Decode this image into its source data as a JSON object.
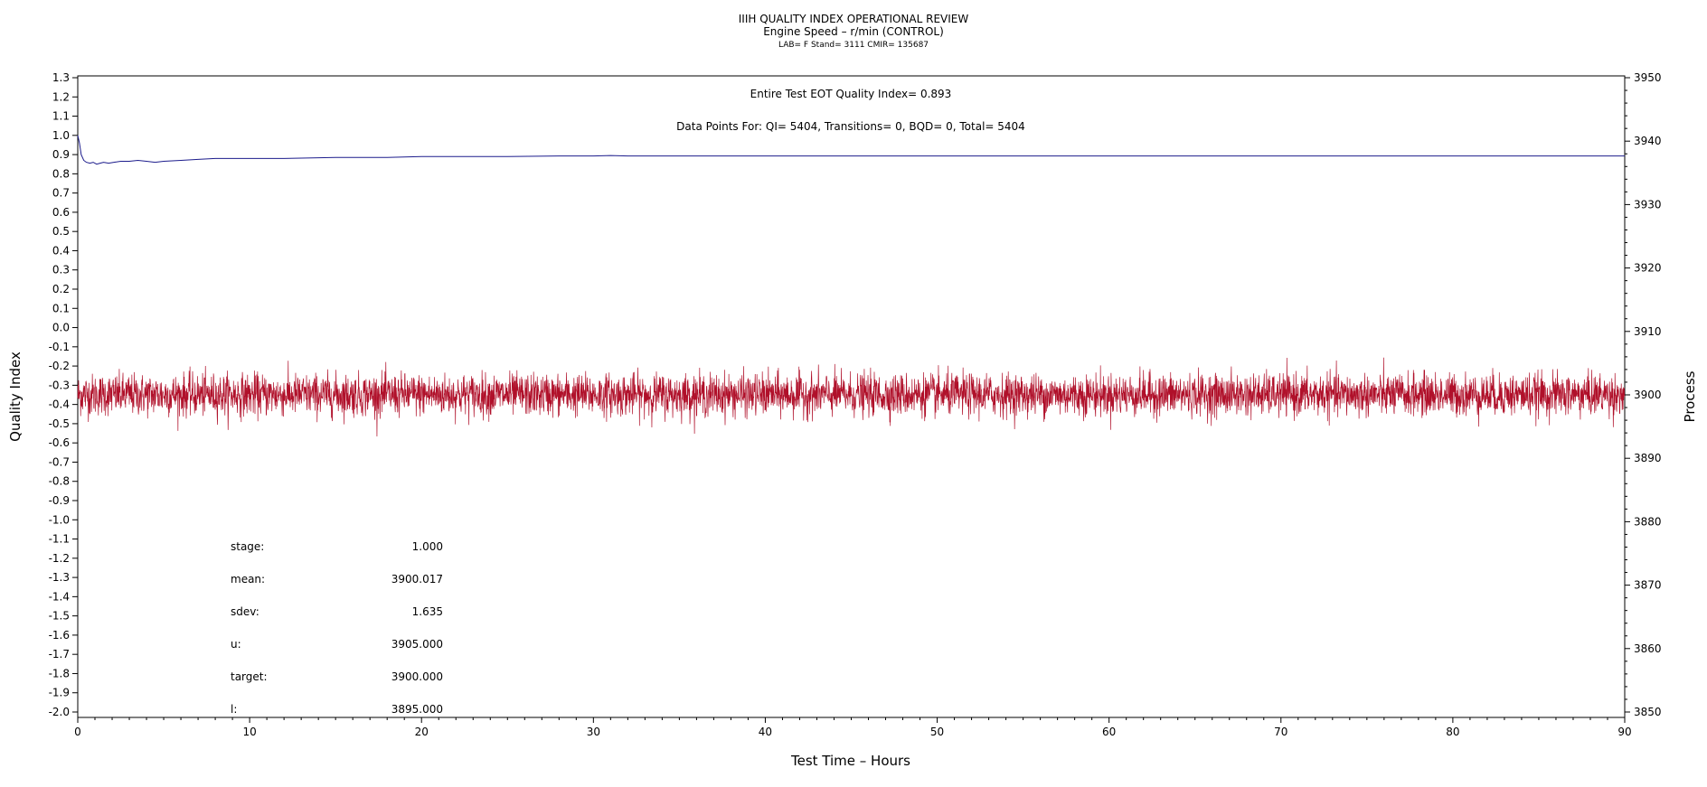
{
  "chart_data": {
    "type": "line",
    "title": "IIIH QUALITY INDEX OPERATIONAL REVIEW",
    "subtitle": "Engine Speed – r/min (CONTROL)",
    "subtitle2": "LAB= F Stand= 3111 CMIR= 135687",
    "xlabel": "Test Time – Hours",
    "ylabel": "Quality Index",
    "y2label": "Process",
    "xlim": [
      0,
      90
    ],
    "ylim": [
      -2.0,
      1.3
    ],
    "y2lim": [
      3850,
      3950
    ],
    "x_ticks": [
      "0",
      "10",
      "20",
      "30",
      "40",
      "50",
      "60",
      "70",
      "80",
      "90"
    ],
    "y_ticks": [
      "1.3",
      "1.2",
      "1.1",
      "1.0",
      "0.9",
      "0.8",
      "0.7",
      "0.6",
      "0.5",
      "0.4",
      "0.3",
      "0.2",
      "0.1",
      "0.0",
      "-0.1",
      "-0.2",
      "-0.3",
      "-0.4",
      "-0.5",
      "-0.6",
      "-0.7",
      "-0.8",
      "-0.9",
      "-1.0",
      "-1.1",
      "-1.2",
      "-1.3",
      "-1.4",
      "-1.5",
      "-1.6",
      "-1.7",
      "-1.8",
      "-1.9",
      "-2.0"
    ],
    "y2_ticks": [
      "3950",
      "3940",
      "3930",
      "3920",
      "3910",
      "3900",
      "3890",
      "3880",
      "3870",
      "3860",
      "3850"
    ],
    "annotations": {
      "eot_qi": "Entire Test EOT Quality Index=   0.893",
      "data_points": "Data Points For: QI=  5404, Transitions=     0, BQD=     0, Total=  5404"
    },
    "stats": [
      {
        "label": "stage:",
        "value": "1.000"
      },
      {
        "label": "mean:",
        "value": "3900.017"
      },
      {
        "label": "sdev:",
        "value": "1.635"
      },
      {
        "label": "u:",
        "value": "3905.000"
      },
      {
        "label": "target:",
        "value": "3900.000"
      },
      {
        "label": "l:",
        "value": "3895.000"
      }
    ],
    "series": [
      {
        "axis": "left",
        "color": "#1c1c8c",
        "x": [
          0,
          0.1,
          0.2,
          0.35,
          0.5,
          0.7,
          0.9,
          1.1,
          1.3,
          1.5,
          1.8,
          2.1,
          2.5,
          3,
          3.5,
          4,
          4.5,
          5,
          6,
          7,
          8,
          10,
          12,
          15,
          18,
          20,
          25,
          28,
          30,
          31,
          32,
          35,
          40,
          50,
          60,
          70,
          80,
          90
        ],
        "y": [
          1.0,
          0.96,
          0.9,
          0.87,
          0.86,
          0.855,
          0.86,
          0.85,
          0.855,
          0.86,
          0.855,
          0.86,
          0.865,
          0.865,
          0.87,
          0.865,
          0.86,
          0.865,
          0.87,
          0.875,
          0.88,
          0.88,
          0.88,
          0.885,
          0.885,
          0.89,
          0.89,
          0.893,
          0.893,
          0.895,
          0.893,
          0.893,
          0.893,
          0.893,
          0.893,
          0.893,
          0.893,
          0.893
        ]
      },
      {
        "axis": "right",
        "color": "#b0102a",
        "points": 5404,
        "mean": 3900.017,
        "sdev": 1.635,
        "xrange": [
          0,
          90
        ]
      }
    ],
    "grid": false
  }
}
